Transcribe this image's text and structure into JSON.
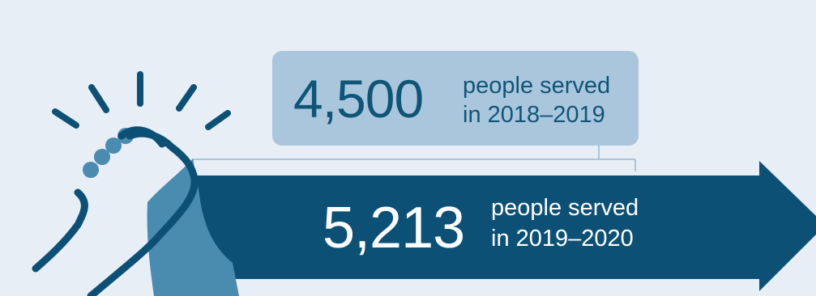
{
  "previous": {
    "value": "4,500",
    "line1": "people served",
    "line2": "in 2018–2019"
  },
  "current": {
    "value": "5,213",
    "line1": "people served",
    "line2": "in 2019–2020"
  },
  "colors": {
    "background": "#e7eef5",
    "arrow": "#0d5075",
    "box": "#aac6dc",
    "hand_dark": "#0d5075",
    "hand_light": "#4a8bb0"
  }
}
